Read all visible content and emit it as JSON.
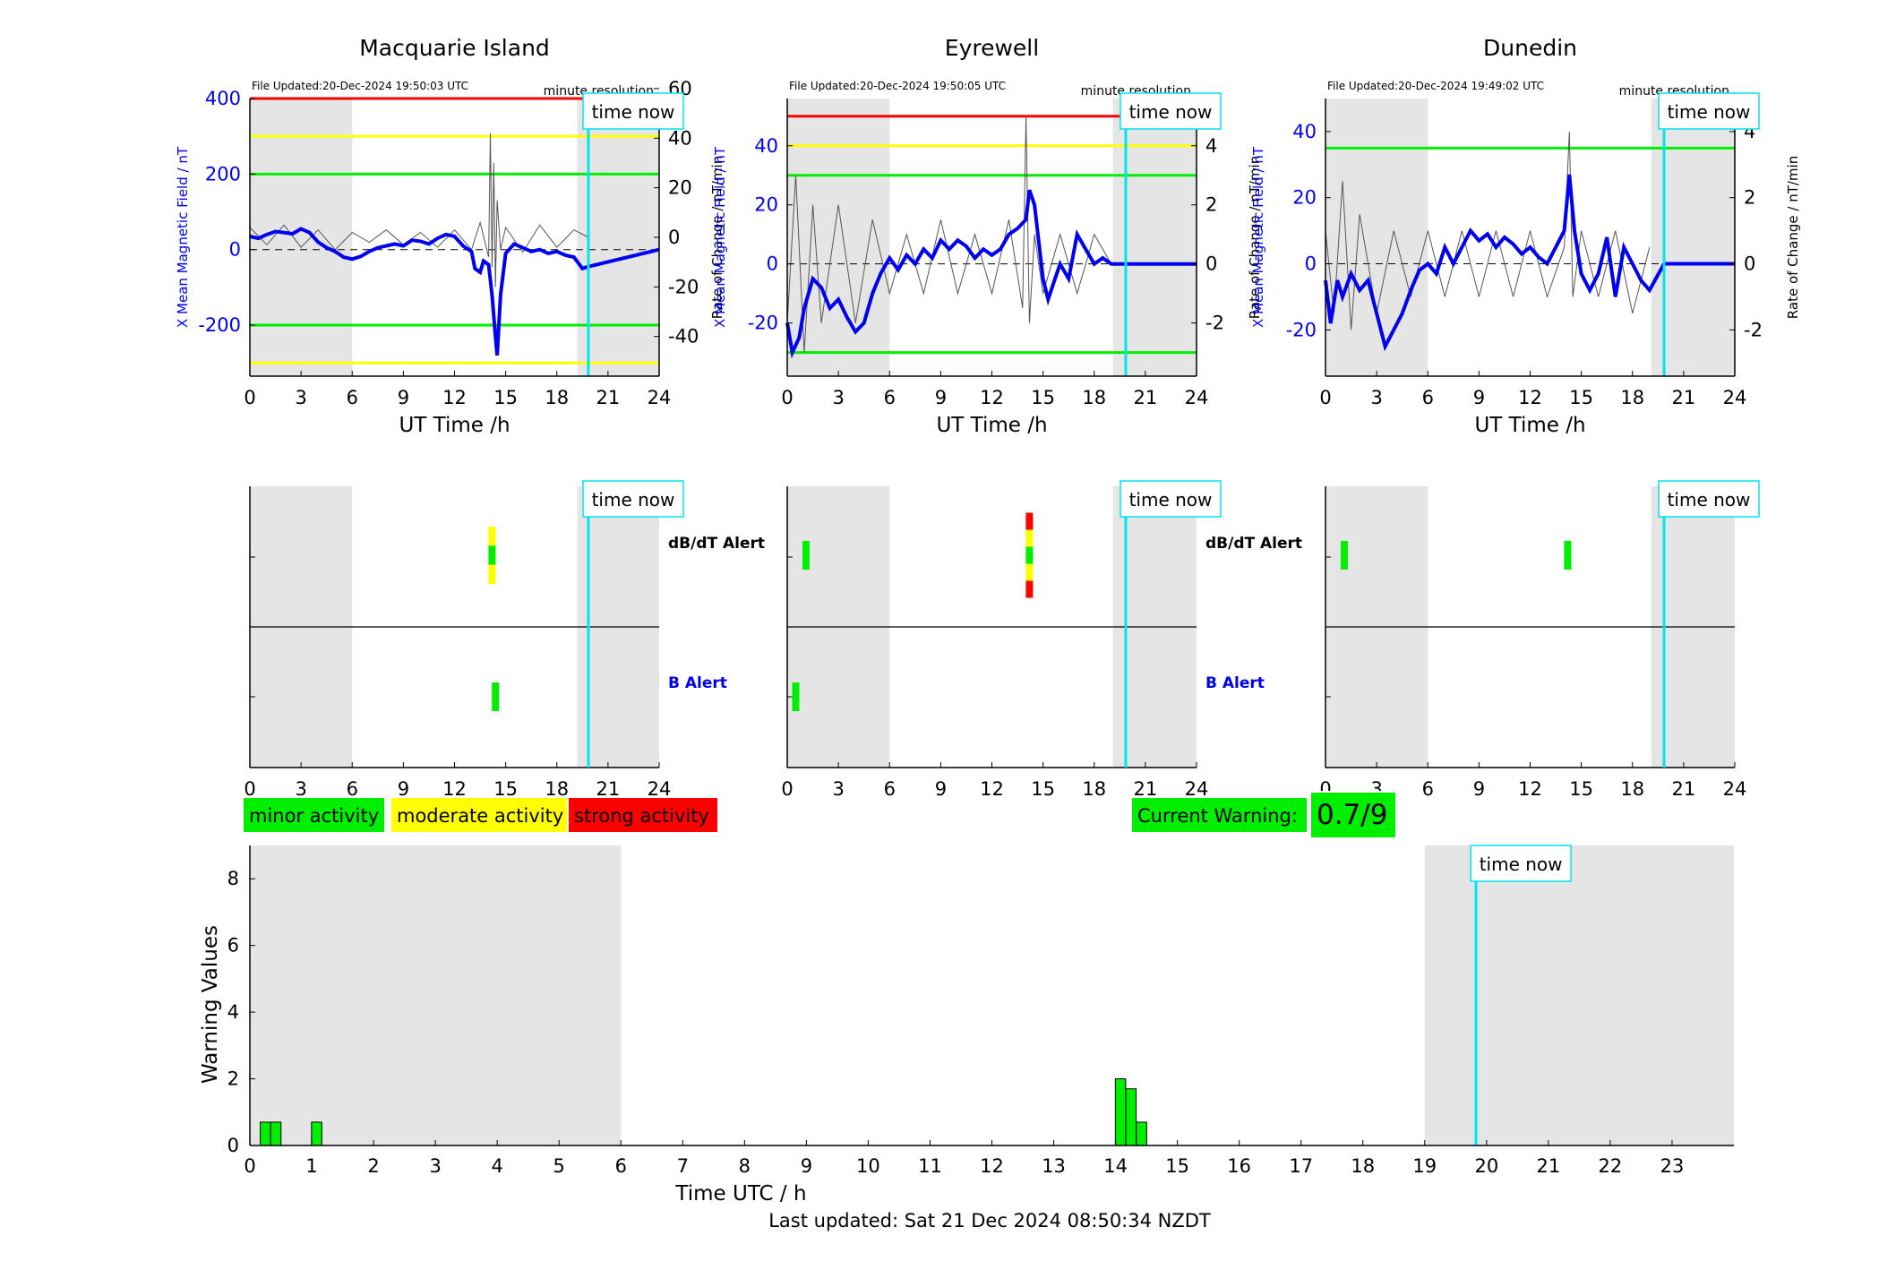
{
  "x_ticks_24": [
    "0",
    "3",
    "6",
    "9",
    "12",
    "15",
    "18",
    "21",
    "24"
  ],
  "labels": {
    "time_now": "time now",
    "minute_resolution": "minute resolution",
    "x_axis": "UT Time /h",
    "y_left": "X Mean Magnetic Field / nT",
    "y_right": "Rate of Change / nT/min",
    "dbdt_alert": "dB/dT Alert",
    "b_alert": "B Alert"
  },
  "stations": [
    {
      "name": "Macquarie Island",
      "file_updated": "File Updated:20-Dec-2024 19:50:03 UTC",
      "y_ticks": [
        "400",
        "200",
        "0",
        "-200"
      ],
      "y2_ticks": [
        "60",
        "40",
        "20",
        "0",
        "-20",
        "-40"
      ],
      "ylim": [
        -335,
        400
      ],
      "y2lim": [
        -56,
        56
      ],
      "thresholds": [
        {
          "value": 400,
          "color": "#ff0000"
        },
        {
          "value": 300,
          "color": "#ffff00"
        },
        {
          "value": 200,
          "color": "#00ee00"
        },
        {
          "value": -200,
          "color": "#00ee00"
        },
        {
          "value": -300,
          "color": "#ffff00"
        }
      ],
      "night_shading_h": [
        [
          0,
          6
        ],
        [
          19.2,
          24
        ]
      ],
      "time_now_h": 19.85,
      "field_series": [
        [
          0,
          35
        ],
        [
          0.5,
          30
        ],
        [
          1,
          40
        ],
        [
          1.5,
          48
        ],
        [
          2,
          45
        ],
        [
          2.5,
          42
        ],
        [
          3,
          55
        ],
        [
          3.5,
          45
        ],
        [
          4,
          20
        ],
        [
          4.5,
          5
        ],
        [
          5,
          -5
        ],
        [
          5.5,
          -20
        ],
        [
          6,
          -25
        ],
        [
          6.5,
          -18
        ],
        [
          7,
          -5
        ],
        [
          7.5,
          5
        ],
        [
          8,
          10
        ],
        [
          8.5,
          15
        ],
        [
          9,
          10
        ],
        [
          9.5,
          25
        ],
        [
          10,
          22
        ],
        [
          10.5,
          15
        ],
        [
          11,
          30
        ],
        [
          11.5,
          40
        ],
        [
          12,
          35
        ],
        [
          12.5,
          10
        ],
        [
          13,
          -5
        ],
        [
          13.2,
          -50
        ],
        [
          13.5,
          -60
        ],
        [
          13.7,
          -30
        ],
        [
          14,
          -40
        ],
        [
          14.2,
          -120
        ],
        [
          14.4,
          -230
        ],
        [
          14.5,
          -280
        ],
        [
          14.7,
          -120
        ],
        [
          15,
          -10
        ],
        [
          15.5,
          15
        ],
        [
          16,
          5
        ],
        [
          16.5,
          -5
        ],
        [
          17,
          0
        ],
        [
          17.5,
          -10
        ],
        [
          18,
          -5
        ],
        [
          18.5,
          -15
        ],
        [
          19,
          -20
        ],
        [
          19.5,
          -50
        ],
        [
          19.85,
          -45
        ],
        [
          24,
          0
        ]
      ],
      "rate_series": [
        [
          0,
          4
        ],
        [
          1,
          -3
        ],
        [
          2,
          5
        ],
        [
          3,
          -4
        ],
        [
          4,
          3
        ],
        [
          5,
          -5
        ],
        [
          6,
          2
        ],
        [
          7,
          -2
        ],
        [
          8,
          3
        ],
        [
          9,
          -3
        ],
        [
          10,
          2
        ],
        [
          11,
          -4
        ],
        [
          12,
          3
        ],
        [
          13,
          -5
        ],
        [
          13.5,
          6
        ],
        [
          14,
          -8
        ],
        [
          14.1,
          42
        ],
        [
          14.2,
          -12
        ],
        [
          14.3,
          30
        ],
        [
          14.4,
          -20
        ],
        [
          14.5,
          15
        ],
        [
          14.7,
          -5
        ],
        [
          15,
          4
        ],
        [
          16,
          -6
        ],
        [
          17,
          5
        ],
        [
          18,
          -4
        ],
        [
          19,
          3
        ],
        [
          19.85,
          0
        ]
      ],
      "dbdt_alert_h": 14.2,
      "dbdt_alert_colors": [
        "#ffff00",
        "#00ee00",
        "#ffff00"
      ],
      "b_alert_h": 14.4
    },
    {
      "name": "Eyrewell",
      "file_updated": "File Updated:20-Dec-2024 19:50:05 UTC",
      "y_ticks": [
        "40",
        "20",
        "0",
        "-20"
      ],
      "y2_ticks": [
        "4",
        "2",
        "0",
        "-2"
      ],
      "ylim": [
        -38,
        56
      ],
      "y2lim": [
        -3.8,
        5.6
      ],
      "thresholds": [
        {
          "value": 50,
          "color": "#ff0000"
        },
        {
          "value": 40,
          "color": "#ffff00"
        },
        {
          "value": 30,
          "color": "#00ee00"
        },
        {
          "value": -30,
          "color": "#00ee00"
        }
      ],
      "night_shading_h": [
        [
          0,
          6
        ],
        [
          19.1,
          24
        ]
      ],
      "time_now_h": 19.85,
      "field_series": [
        [
          0,
          -20
        ],
        [
          0.3,
          -30
        ],
        [
          0.7,
          -25
        ],
        [
          1,
          -15
        ],
        [
          1.5,
          -5
        ],
        [
          2,
          -8
        ],
        [
          2.5,
          -15
        ],
        [
          3,
          -12
        ],
        [
          3.5,
          -18
        ],
        [
          4,
          -23
        ],
        [
          4.5,
          -20
        ],
        [
          5,
          -10
        ],
        [
          5.5,
          -3
        ],
        [
          6,
          2
        ],
        [
          6.5,
          -2
        ],
        [
          7,
          3
        ],
        [
          7.5,
          0
        ],
        [
          8,
          5
        ],
        [
          8.5,
          2
        ],
        [
          9,
          8
        ],
        [
          9.5,
          5
        ],
        [
          10,
          8
        ],
        [
          10.5,
          6
        ],
        [
          11,
          2
        ],
        [
          11.5,
          5
        ],
        [
          12,
          3
        ],
        [
          12.5,
          5
        ],
        [
          13,
          10
        ],
        [
          13.5,
          12
        ],
        [
          14,
          15
        ],
        [
          14.2,
          25
        ],
        [
          14.5,
          20
        ],
        [
          15,
          -5
        ],
        [
          15.3,
          -12
        ],
        [
          15.7,
          -5
        ],
        [
          16,
          0
        ],
        [
          16.5,
          -5
        ],
        [
          17,
          10
        ],
        [
          17.5,
          5
        ],
        [
          18,
          0
        ],
        [
          18.5,
          2
        ],
        [
          19,
          0
        ],
        [
          19.85,
          0
        ],
        [
          24,
          0
        ]
      ],
      "rate_series": [
        [
          0,
          -2
        ],
        [
          0.5,
          3
        ],
        [
          1,
          -3
        ],
        [
          1.5,
          2
        ],
        [
          2,
          -2
        ],
        [
          3,
          2
        ],
        [
          4,
          -2
        ],
        [
          5,
          1.5
        ],
        [
          6,
          -1
        ],
        [
          7,
          1
        ],
        [
          8,
          -1
        ],
        [
          9,
          1.5
        ],
        [
          10,
          -1
        ],
        [
          11,
          1
        ],
        [
          12,
          -1
        ],
        [
          13,
          1.5
        ],
        [
          13.8,
          -1.5
        ],
        [
          14,
          5
        ],
        [
          14.2,
          -2
        ],
        [
          14.5,
          1
        ],
        [
          15,
          -1
        ],
        [
          16,
          1
        ],
        [
          17,
          -1
        ],
        [
          18,
          1
        ],
        [
          19,
          0
        ]
      ],
      "dbdt_alert_h": 14.2,
      "dbdt_alert_colors": [
        "#ff0000",
        "#ffff00",
        "#00ee00",
        "#ffff00",
        "#ff0000"
      ],
      "dbdt_alert_h2": 1.1,
      "b_alert_h": 0.5
    },
    {
      "name": "Dunedin",
      "file_updated": "File Updated:20-Dec-2024 19:49:02 UTC",
      "y_ticks": [
        "40",
        "20",
        "0",
        "-20"
      ],
      "y2_ticks": [
        "4",
        "2",
        "0",
        "-2"
      ],
      "ylim": [
        -34,
        50
      ],
      "y2lim": [
        -3.4,
        5.0
      ],
      "thresholds": [
        {
          "value": 35,
          "color": "#00ee00"
        }
      ],
      "night_shading_h": [
        [
          0,
          6
        ],
        [
          19.1,
          24
        ]
      ],
      "time_now_h": 19.85,
      "field_series": [
        [
          0,
          -5
        ],
        [
          0.3,
          -18
        ],
        [
          0.7,
          -5
        ],
        [
          1,
          -10
        ],
        [
          1.5,
          -3
        ],
        [
          2,
          -8
        ],
        [
          2.5,
          -5
        ],
        [
          3,
          -15
        ],
        [
          3.5,
          -25
        ],
        [
          4,
          -20
        ],
        [
          4.5,
          -15
        ],
        [
          5,
          -8
        ],
        [
          5.5,
          -2
        ],
        [
          6,
          0
        ],
        [
          6.5,
          -3
        ],
        [
          7,
          5
        ],
        [
          7.5,
          0
        ],
        [
          8,
          5
        ],
        [
          8.5,
          10
        ],
        [
          9,
          7
        ],
        [
          9.5,
          9
        ],
        [
          10,
          5
        ],
        [
          10.5,
          8
        ],
        [
          11,
          6
        ],
        [
          11.5,
          3
        ],
        [
          12,
          5
        ],
        [
          12.5,
          2
        ],
        [
          13,
          0
        ],
        [
          13.5,
          5
        ],
        [
          14,
          10
        ],
        [
          14.3,
          27
        ],
        [
          14.6,
          10
        ],
        [
          15,
          -3
        ],
        [
          15.5,
          -8
        ],
        [
          16,
          -3
        ],
        [
          16.5,
          8
        ],
        [
          17,
          -10
        ],
        [
          17.5,
          5
        ],
        [
          18,
          0
        ],
        [
          18.5,
          -5
        ],
        [
          19,
          -8
        ],
        [
          19.85,
          0
        ],
        [
          24,
          0
        ]
      ],
      "rate_series": [
        [
          0,
          1
        ],
        [
          0.5,
          -1.5
        ],
        [
          1,
          2.5
        ],
        [
          1.5,
          -2
        ],
        [
          2,
          1.5
        ],
        [
          3,
          -1.5
        ],
        [
          4,
          1
        ],
        [
          5,
          -1
        ],
        [
          6,
          1
        ],
        [
          7,
          -1
        ],
        [
          8,
          1
        ],
        [
          9,
          -1
        ],
        [
          10,
          1
        ],
        [
          11,
          -1
        ],
        [
          12,
          1
        ],
        [
          13,
          -1
        ],
        [
          14,
          0.5
        ],
        [
          14.3,
          4
        ],
        [
          14.5,
          -1
        ],
        [
          15,
          1
        ],
        [
          16,
          -1
        ],
        [
          17,
          1
        ],
        [
          18,
          -1.5
        ],
        [
          19,
          0.5
        ]
      ],
      "dbdt_alert_h": 1.1,
      "dbdt_alert_colors": [
        "#00ee00"
      ],
      "dbdt_alert_h2": 14.2
    }
  ],
  "legend": {
    "minor": "minor activity",
    "moderate": "moderate activity",
    "strong": "strong activity",
    "minor_color": "#00ee00",
    "moderate_color": "#ffff00",
    "strong_color": "#ff0000"
  },
  "current_warning": {
    "label": "Current Warning:",
    "value": "0.7/9"
  },
  "chart_data": {
    "type": "bar",
    "title": "",
    "xlabel": "Time UTC / h",
    "ylabel": "Warning Values",
    "x_ticks": [
      "0",
      "1",
      "2",
      "3",
      "4",
      "5",
      "6",
      "7",
      "8",
      "9",
      "10",
      "11",
      "12",
      "13",
      "14",
      "15",
      "16",
      "17",
      "18",
      "19",
      "20",
      "21",
      "22",
      "23"
    ],
    "y_ticks": [
      "0",
      "2",
      "4",
      "6",
      "8"
    ],
    "xlim": [
      0,
      24
    ],
    "ylim": [
      0,
      9
    ],
    "bar_width_h": 0.167,
    "bars": [
      {
        "x": 0.25,
        "value": 0.7
      },
      {
        "x": 0.42,
        "value": 0.7
      },
      {
        "x": 1.08,
        "value": 0.7
      },
      {
        "x": 14.08,
        "value": 2.0
      },
      {
        "x": 14.25,
        "value": 1.7
      },
      {
        "x": 14.42,
        "value": 0.7
      }
    ],
    "night_shading_h": [
      [
        0,
        6
      ],
      [
        19,
        24
      ]
    ],
    "time_now_h": 19.83,
    "bar_color": "#00ee00"
  },
  "footer": "Last updated: Sat 21 Dec 2024 08:50:34 NZDT"
}
